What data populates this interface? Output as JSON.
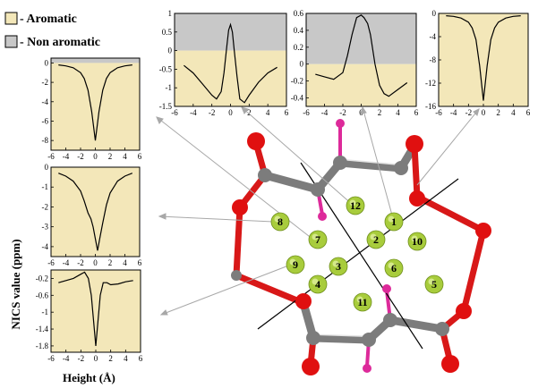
{
  "legend": {
    "aromatic": {
      "label": "- Aromatic",
      "color": "#f3e7b9"
    },
    "non_aromatic": {
      "label": "- Non aromatic",
      "color": "#c8c8c8"
    }
  },
  "y_axis_title": "NICS value (ppm)",
  "x_axis_title": "Height (Å)",
  "chart_data": [
    {
      "type": "line",
      "ring_label": "12",
      "x": [
        -5,
        -4,
        -3,
        -2,
        -1.5,
        -1,
        -0.7,
        -0.4,
        -0.2,
        0,
        0.2,
        0.4,
        0.7,
        1,
        1.5,
        2,
        3,
        4,
        5
      ],
      "y": [
        -0.4,
        -0.6,
        -0.9,
        -1.2,
        -1.3,
        -1.1,
        -0.6,
        0.1,
        0.55,
        0.7,
        0.5,
        0.0,
        -0.7,
        -1.3,
        -1.4,
        -1.2,
        -0.85,
        -0.6,
        -0.45
      ],
      "xlim": [
        -6,
        6
      ],
      "ylim": [
        -1.5,
        1
      ],
      "xticks": [
        "-6",
        "-4",
        "-2",
        "0",
        "2",
        "4",
        "6"
      ],
      "yticks": [
        "1",
        "0.5",
        "0",
        "-0.5",
        "-1",
        "-1.5"
      ],
      "grid": false
    },
    {
      "type": "line",
      "ring_label": "1",
      "x": [
        -5,
        -4,
        -3,
        -2,
        -1.5,
        -1,
        -0.5,
        0,
        0.3,
        0.7,
        1,
        1.5,
        2,
        2.5,
        3,
        4,
        5
      ],
      "y": [
        -0.12,
        -0.15,
        -0.18,
        -0.1,
        0.1,
        0.35,
        0.55,
        0.58,
        0.55,
        0.48,
        0.35,
        0.0,
        -0.25,
        -0.35,
        -0.38,
        -0.3,
        -0.22
      ],
      "xlim": [
        -6,
        6
      ],
      "ylim": [
        -0.5,
        0.6
      ],
      "xticks": [
        "-6",
        "-4",
        "-2",
        "0",
        "2",
        "4",
        "6"
      ],
      "yticks": [
        "0.6",
        "0.4",
        "0.2",
        "0",
        "-0.2",
        "-0.4"
      ],
      "grid": false
    },
    {
      "type": "line",
      "ring_label": "10",
      "x": [
        -5,
        -4,
        -3,
        -2,
        -1.5,
        -1,
        -0.5,
        0,
        0.5,
        1,
        1.5,
        2,
        3,
        4,
        5
      ],
      "y": [
        -0.4,
        -0.5,
        -0.8,
        -1.5,
        -2.5,
        -4.5,
        -9,
        -15,
        -9,
        -4.5,
        -2.5,
        -1.5,
        -0.8,
        -0.5,
        -0.4
      ],
      "xlim": [
        -6,
        6
      ],
      "ylim": [
        -16,
        0
      ],
      "xticks": [
        "-6",
        "-4",
        "-2",
        "0",
        "2",
        "4",
        "6"
      ],
      "yticks": [
        "0",
        "-4",
        "-8",
        "-12",
        "-16"
      ],
      "grid": false
    },
    {
      "type": "line",
      "ring_label": "8",
      "x": [
        -5,
        -4,
        -3,
        -2,
        -1.5,
        -1,
        -0.5,
        0,
        0.5,
        1,
        1.5,
        2,
        3,
        4,
        5
      ],
      "y": [
        -0.2,
        -0.3,
        -0.5,
        -1,
        -1.6,
        -2.8,
        -5,
        -8,
        -5,
        -2.8,
        -1.6,
        -1,
        -0.5,
        -0.3,
        -0.2
      ],
      "xlim": [
        -6,
        6
      ],
      "ylim": [
        -9,
        0.5
      ],
      "xticks": [
        "-6",
        "-4",
        "-2",
        "0",
        "2",
        "4",
        "6"
      ],
      "yticks": [
        "0",
        "-2",
        "-4",
        "-6",
        "-8"
      ],
      "grid": false
    },
    {
      "type": "line",
      "ring_label": "7",
      "x": [
        -5,
        -4,
        -3,
        -2,
        -1.5,
        -1,
        -0.6,
        -0.3,
        0,
        0.3,
        0.6,
        1,
        1.5,
        2,
        3,
        4,
        5
      ],
      "y": [
        -0.3,
        -0.45,
        -0.7,
        -1.2,
        -1.7,
        -2.3,
        -2.6,
        -3.0,
        -3.6,
        -4.2,
        -3.6,
        -2.8,
        -1.9,
        -1.3,
        -0.7,
        -0.45,
        -0.3
      ],
      "xlim": [
        -6,
        6
      ],
      "ylim": [
        -4.5,
        0
      ],
      "xticks": [
        "-6",
        "-4",
        "-2",
        "0",
        "2",
        "4",
        "6"
      ],
      "yticks": [
        "0",
        "-1",
        "-2",
        "-3",
        "-4"
      ],
      "grid": false
    },
    {
      "type": "line",
      "ring_label": "9",
      "x": [
        -5,
        -4,
        -3,
        -2,
        -1.5,
        -1,
        -0.6,
        -0.3,
        0,
        0.3,
        0.6,
        1,
        1.5,
        2,
        3,
        4,
        5
      ],
      "y": [
        -0.3,
        -0.25,
        -0.2,
        -0.1,
        -0.05,
        -0.2,
        -0.6,
        -1.2,
        -1.8,
        -1.2,
        -0.6,
        -0.3,
        -0.3,
        -0.35,
        -0.33,
        -0.28,
        -0.25
      ],
      "xlim": [
        -6,
        6
      ],
      "ylim": [
        -1.95,
        0
      ],
      "xticks": [
        "-6",
        "-4",
        "-2",
        "0",
        "2",
        "4",
        "6"
      ],
      "yticks": [
        "-0.2",
        "-0.6",
        "-1",
        "-1.4",
        "-1.8"
      ],
      "grid": false
    }
  ],
  "molecule": {
    "ring_labels": [
      "1",
      "2",
      "3",
      "4",
      "5",
      "6",
      "7",
      "8",
      "9",
      "10",
      "11",
      "12"
    ],
    "ball_color": "#a8cc3c",
    "oxygen_color": "#e01010",
    "carbon_color": "#7c7c7c",
    "hydrogen_color": "#dd2a9a"
  }
}
